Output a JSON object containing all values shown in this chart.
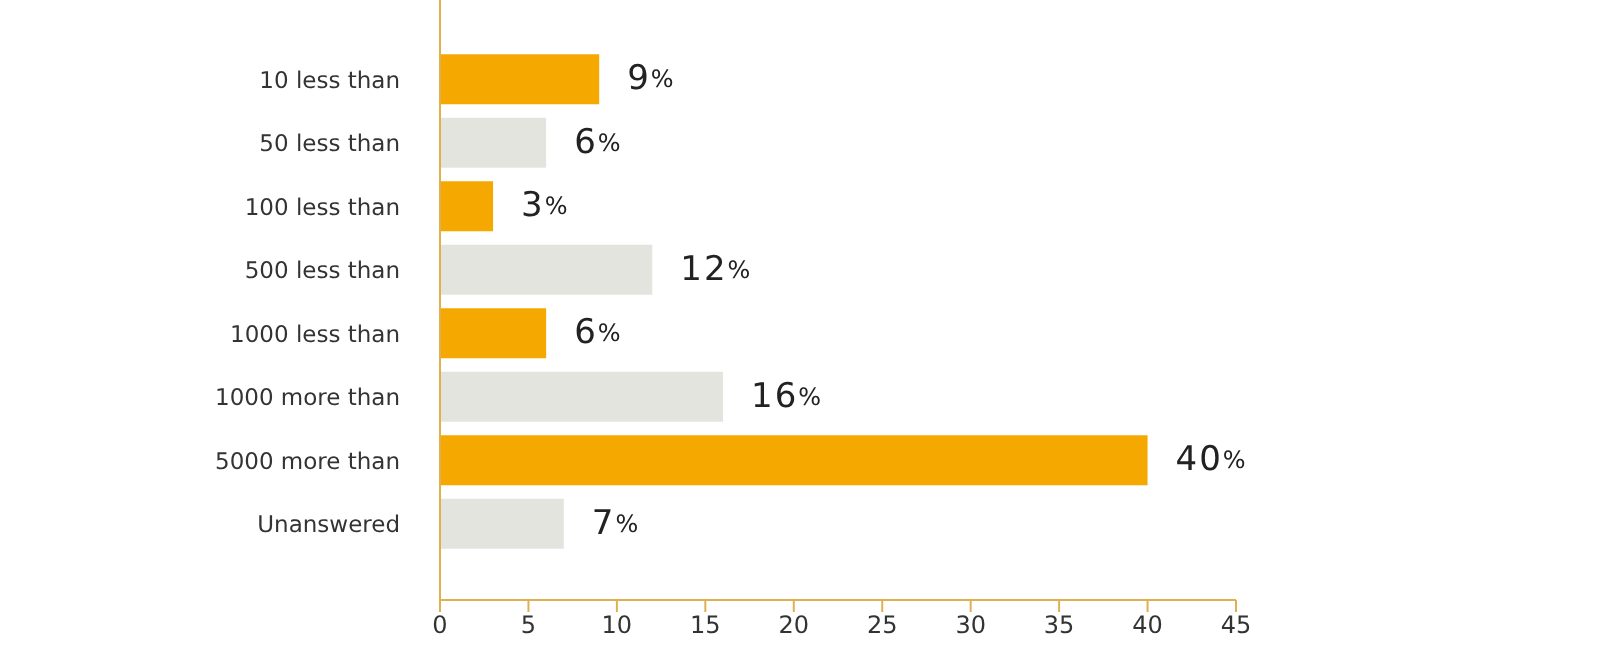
{
  "chart_data": {
    "type": "bar",
    "orientation": "horizontal",
    "categories": [
      "10 less than",
      "50 less than",
      "100 less than",
      "500 less than",
      "1000 less than",
      "1000 more than",
      "5000 more than",
      "Unanswered"
    ],
    "values": [
      9,
      6,
      3,
      12,
      6,
      16,
      40,
      7
    ],
    "colors": [
      "#f5a800",
      "#e4e4df",
      "#f5a800",
      "#e4e4df",
      "#f5a800",
      "#e4e4df",
      "#f5a800",
      "#e4e4df"
    ],
    "value_labels": [
      "9%",
      "6%",
      "3%",
      "12%",
      "6%",
      "16%",
      "40%",
      "7%"
    ],
    "xlim": [
      0,
      45
    ],
    "xticks": [
      0,
      5,
      10,
      15,
      20,
      25,
      30,
      35,
      40,
      45
    ]
  }
}
